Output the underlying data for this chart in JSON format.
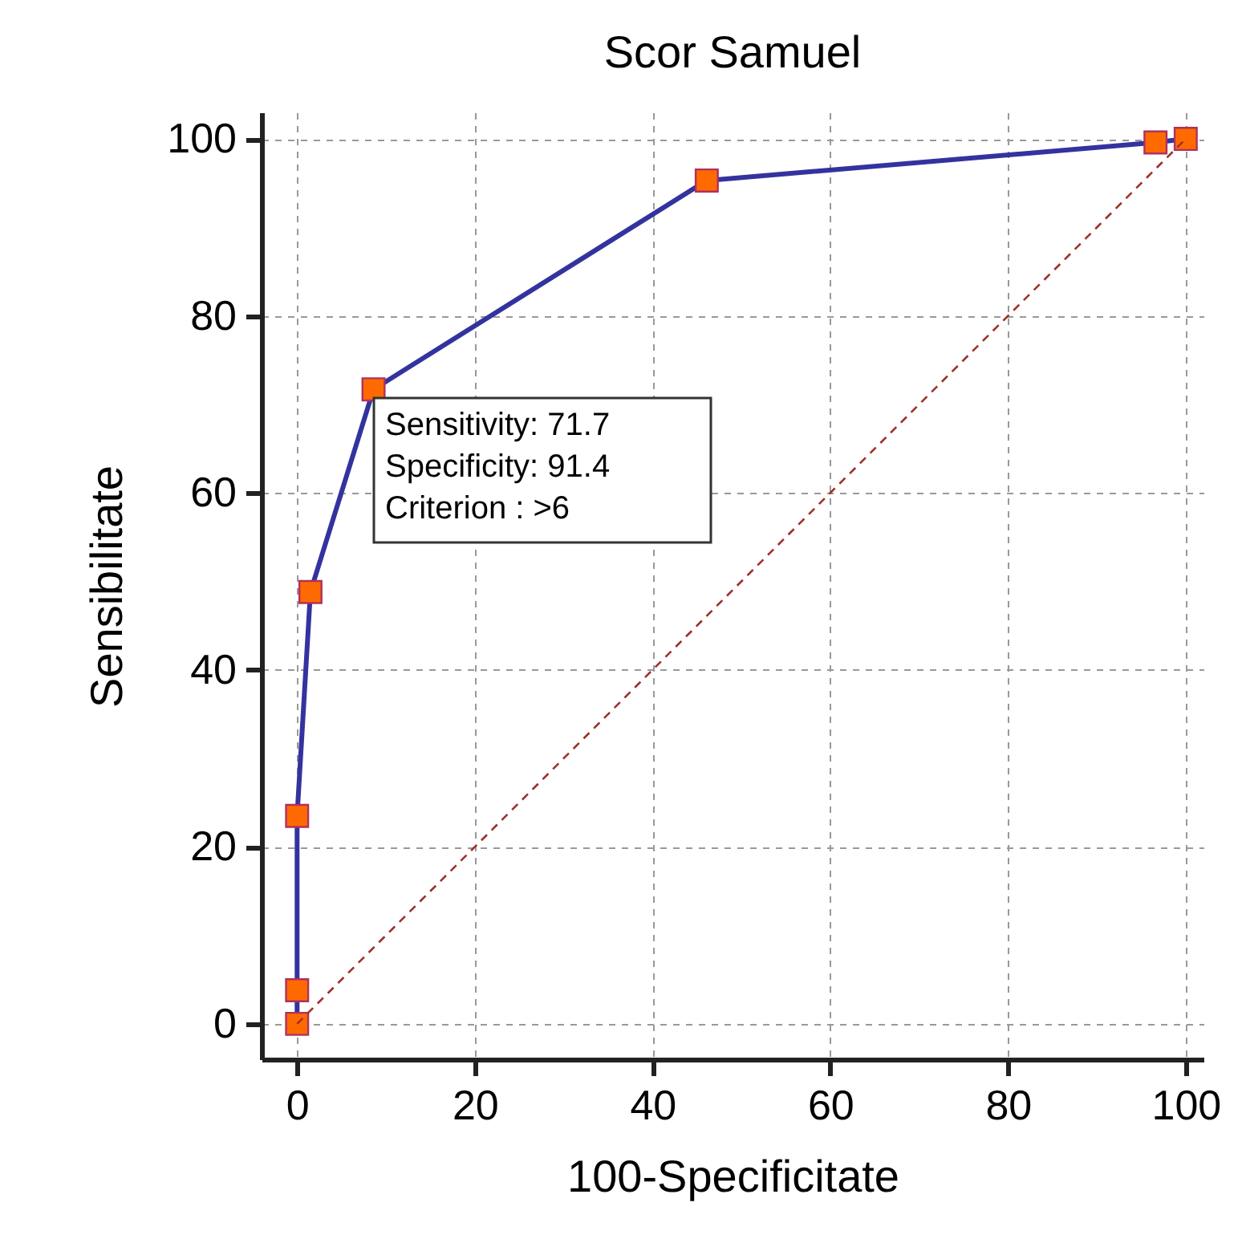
{
  "chart_data": {
    "type": "line",
    "title": "Scor Samuel",
    "xlabel": "100-Specificitate",
    "ylabel": "Sensibilitate",
    "series": [
      {
        "color": "#33339f",
        "marker": "square",
        "x": [
          0,
          0,
          0,
          1.5,
          8.6,
          46.1,
          96.6,
          100
        ],
        "values": [
          0,
          3.8,
          23.5,
          48.8,
          71.7,
          95.3,
          99.6,
          100
        ]
      },
      {
        "color": "#a0302a",
        "marker": "none",
        "line_style": "dashed",
        "x": [
          0,
          100
        ],
        "values": [
          0,
          100
        ]
      }
    ],
    "annotations": [
      "Sensitivity: 71.7",
      "Specificity: 91.4",
      "Criterion : >6"
    ],
    "xlim": [
      -4,
      102
    ],
    "ylim": [
      -4,
      103
    ],
    "xticks": [
      0,
      20,
      40,
      60,
      80,
      100
    ],
    "yticks": [
      0,
      20,
      40,
      60,
      80,
      100
    ],
    "grid": true
  }
}
